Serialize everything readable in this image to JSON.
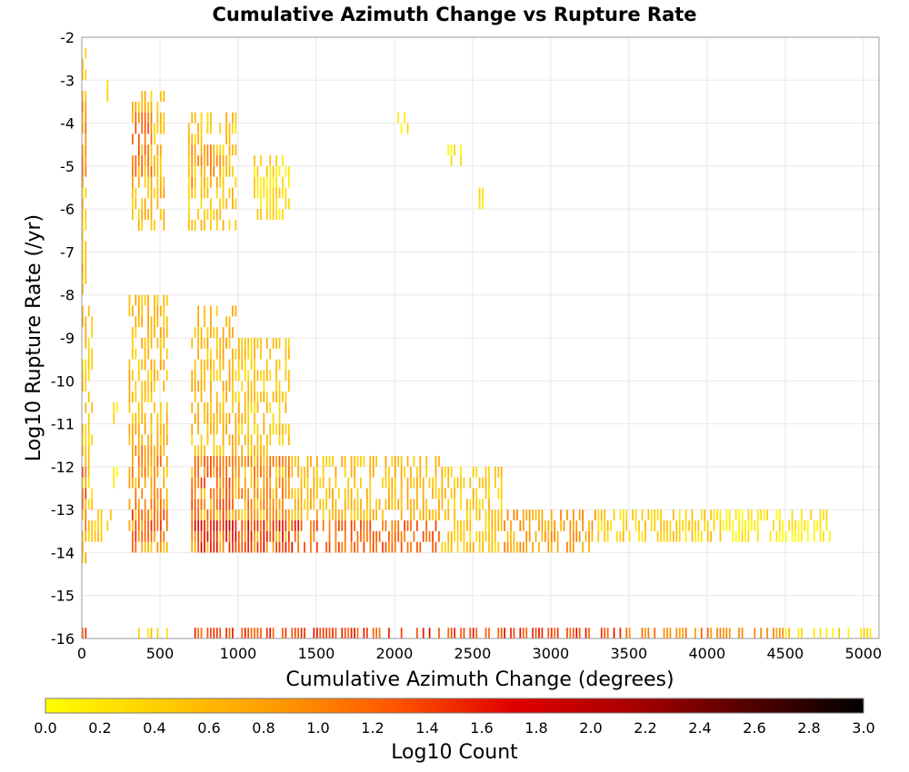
{
  "chart_data": {
    "type": "heatmap",
    "title": "Cumulative Azimuth Change vs Rupture Rate",
    "xlabel": "Cumulative Azimuth Change (degrees)",
    "ylabel": "Log10 Rupture Rate (/yr)",
    "xlim": [
      0,
      5100
    ],
    "ylim": [
      -16,
      -2
    ],
    "x_ticks": [
      "0",
      "500",
      "1000",
      "1500",
      "2000",
      "2500",
      "3000",
      "3500",
      "4000",
      "4500",
      "5000"
    ],
    "y_ticks": [
      "-2",
      "-3",
      "-4",
      "-5",
      "-6",
      "-7",
      "-8",
      "-9",
      "-10",
      "-11",
      "-12",
      "-13",
      "-14",
      "-15",
      "-16"
    ],
    "grid": true,
    "colorbar": {
      "label": "Log10 Count",
      "range": [
        0.0,
        3.0
      ],
      "ticks": [
        "0.0",
        "0.2",
        "0.4",
        "0.6",
        "0.8",
        "1.0",
        "1.2",
        "1.4",
        "1.6",
        "1.8",
        "2.0",
        "2.2",
        "2.4",
        "2.6",
        "2.8",
        "3.0"
      ],
      "colormap": [
        "#ffff00",
        "#ffcc00",
        "#ff9900",
        "#ff5500",
        "#e00000",
        "#aa0000",
        "#550000",
        "#000000"
      ]
    },
    "bin_width_x": 20,
    "bin_height_y": 0.25,
    "regions": [
      {
        "x": [
          0,
          30
        ],
        "y": [
          -14.2,
          -2.2
        ],
        "value": 0.5
      },
      {
        "x": [
          0,
          30
        ],
        "y": [
          -14,
          -12
        ],
        "value": 1.2
      },
      {
        "x": [
          0,
          30
        ],
        "y": [
          -5.5,
          -3.5
        ],
        "value": 1.0
      },
      {
        "x": [
          30,
          60
        ],
        "y": [
          -14,
          -8
        ],
        "value": 0.4
      },
      {
        "x": [
          60,
          200
        ],
        "y": [
          -13.8,
          -13.2
        ],
        "value": 0.4
      },
      {
        "x": [
          150,
          170
        ],
        "y": [
          -3.6,
          -3.2
        ],
        "value": 0.2
      },
      {
        "x": [
          200,
          230
        ],
        "y": [
          -11.1,
          -10.7
        ],
        "value": 0.2
      },
      {
        "x": [
          200,
          230
        ],
        "y": [
          -12.4,
          -12
        ],
        "value": 0.2
      },
      {
        "x": [
          310,
          520
        ],
        "y": [
          -6.4,
          -3.2
        ],
        "value": 0.6
      },
      {
        "x": [
          320,
          460
        ],
        "y": [
          -5.2,
          -3.8
        ],
        "value": 1.1
      },
      {
        "x": [
          300,
          560
        ],
        "y": [
          -14,
          -8
        ],
        "value": 0.6
      },
      {
        "x": [
          320,
          520
        ],
        "y": [
          -14,
          -11.5
        ],
        "value": 1.0
      },
      {
        "x": [
          320,
          560
        ],
        "y": [
          -13.8,
          -13.2
        ],
        "value": 1.3
      },
      {
        "x": [
          680,
          1000
        ],
        "y": [
          -6.4,
          -3.8
        ],
        "value": 0.5
      },
      {
        "x": [
          700,
          900
        ],
        "y": [
          -5.4,
          -4.6
        ],
        "value": 0.9
      },
      {
        "x": [
          700,
          1000
        ],
        "y": [
          -14,
          -8.3
        ],
        "value": 0.6
      },
      {
        "x": [
          700,
          1000
        ],
        "y": [
          -14,
          -11.8
        ],
        "value": 1.2
      },
      {
        "x": [
          700,
          1000
        ],
        "y": [
          -13.9,
          -13.2
        ],
        "value": 1.6
      },
      {
        "x": [
          1100,
          1330
        ],
        "y": [
          -6.2,
          -4.8
        ],
        "value": 0.3
      },
      {
        "x": [
          1000,
          1330
        ],
        "y": [
          -14,
          -9
        ],
        "value": 0.5
      },
      {
        "x": [
          1000,
          1330
        ],
        "y": [
          -14,
          -11.8
        ],
        "value": 1.0
      },
      {
        "x": [
          1000,
          1400
        ],
        "y": [
          -13.9,
          -13.2
        ],
        "value": 1.5
      },
      {
        "x": [
          1330,
          2300
        ],
        "y": [
          -13.2,
          -11.8
        ],
        "value": 0.6
      },
      {
        "x": [
          1330,
          2300
        ],
        "y": [
          -13.9,
          -13.2
        ],
        "value": 1.2
      },
      {
        "x": [
          2300,
          2700
        ],
        "y": [
          -13.9,
          -12
        ],
        "value": 0.5
      },
      {
        "x": [
          2700,
          3300
        ],
        "y": [
          -13.9,
          -13.1
        ],
        "value": 0.8
      },
      {
        "x": [
          3300,
          4100
        ],
        "y": [
          -13.8,
          -13.2
        ],
        "value": 0.4
      },
      {
        "x": [
          4100,
          4800
        ],
        "y": [
          -13.8,
          -13.2
        ],
        "value": 0.15
      },
      {
        "x": [
          2000,
          2100
        ],
        "y": [
          -4.3,
          -4
        ],
        "value": 0.2
      },
      {
        "x": [
          2330,
          2430
        ],
        "y": [
          -5,
          -4.7
        ],
        "value": 0.15
      },
      {
        "x": [
          2540,
          2580
        ],
        "y": [
          -5.9,
          -5.3
        ],
        "value": 0.15
      },
      {
        "x": [
          320,
          560
        ],
        "y": [
          -16,
          -15.8
        ],
        "value": 0.4
      },
      {
        "x": [
          700,
          3500
        ],
        "y": [
          -16,
          -15.8
        ],
        "value": 1.4
      },
      {
        "x": [
          3500,
          4500
        ],
        "y": [
          -16,
          -15.8
        ],
        "value": 1.0
      },
      {
        "x": [
          4500,
          5100
        ],
        "y": [
          -16,
          -15.8
        ],
        "value": 0.3
      },
      {
        "x": [
          0,
          30
        ],
        "y": [
          -16,
          -15.8
        ],
        "value": 1.5
      }
    ]
  }
}
